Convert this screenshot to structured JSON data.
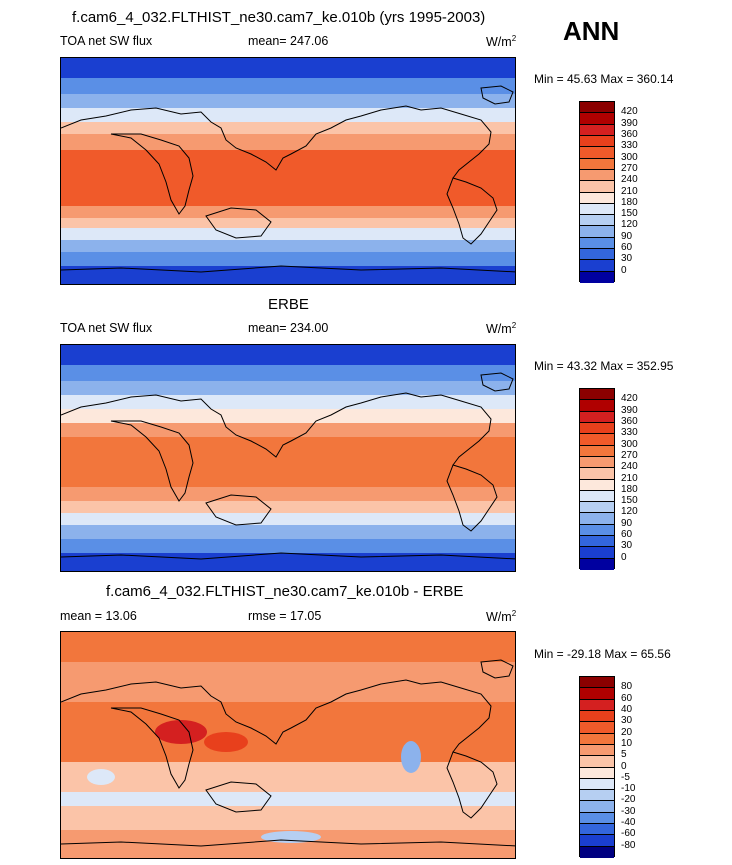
{
  "panels": [
    {
      "title": "f.cam6_4_032.FLTHIST_ne30.cam7_ke.010b (yrs 1995-2003)",
      "left_label": "TOA net SW flux",
      "center_label": "mean= 247.06",
      "units": "W/m",
      "units_sup": "2",
      "minmax": "Min =  45.63 Max = 360.14",
      "colorbar": {
        "ticks": [
          "420",
          "390",
          "360",
          "330",
          "300",
          "270",
          "240",
          "210",
          "180",
          "150",
          "120",
          "90",
          "60",
          "30",
          "0"
        ],
        "colors": [
          "#8b0000",
          "#b00000",
          "#d42020",
          "#e8401c",
          "#f05a2a",
          "#f2763c",
          "#f69a70",
          "#fbc4a8",
          "#fde8dc",
          "#dde8f8",
          "#b6cff2",
          "#8cb2ec",
          "#5a8fe6",
          "#3366dd",
          "#1a3fd0",
          "#0000a0"
        ]
      }
    },
    {
      "title": "ERBE",
      "left_label": "TOA net SW flux",
      "center_label": "mean= 234.00",
      "units": "W/m",
      "units_sup": "2",
      "minmax": "Min =  43.32 Max = 352.95",
      "colorbar": {
        "ticks": [
          "420",
          "390",
          "360",
          "330",
          "300",
          "270",
          "240",
          "210",
          "180",
          "150",
          "120",
          "90",
          "60",
          "30",
          "0"
        ],
        "colors": [
          "#8b0000",
          "#b00000",
          "#d42020",
          "#e8401c",
          "#f05a2a",
          "#f2763c",
          "#f69a70",
          "#fbc4a8",
          "#fde8dc",
          "#dde8f8",
          "#b6cff2",
          "#8cb2ec",
          "#5a8fe6",
          "#3366dd",
          "#1a3fd0",
          "#0000a0"
        ]
      }
    },
    {
      "title": "f.cam6_4_032.FLTHIST_ne30.cam7_ke.010b - ERBE",
      "left_label": "mean =  13.06",
      "center_label": "rmse =  17.05",
      "units": "W/m",
      "units_sup": "2",
      "minmax": "Min = -29.18 Max =  65.56",
      "colorbar": {
        "ticks": [
          "80",
          "60",
          "40",
          "30",
          "20",
          "10",
          "5",
          "0",
          "-5",
          "-10",
          "-20",
          "-30",
          "-40",
          "-60",
          "-80"
        ],
        "colors": [
          "#8b0000",
          "#b00000",
          "#d42020",
          "#e8401c",
          "#f05a2a",
          "#f2763c",
          "#f69a70",
          "#fbc4a8",
          "#fde8dc",
          "#dde8f8",
          "#b6cff2",
          "#8cb2ec",
          "#5a8fe6",
          "#3366dd",
          "#1a3fd0",
          "#000080"
        ]
      }
    }
  ],
  "season": "ANN"
}
